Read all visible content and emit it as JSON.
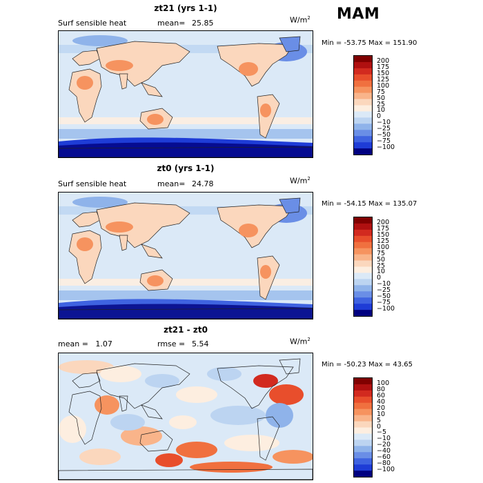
{
  "season": "MAM",
  "panels": [
    {
      "title": "zt21 (yrs 1-1)",
      "left_label": "Surf sensible heat",
      "stat_label": "mean=",
      "stat_value": "25.85",
      "units": "W/m",
      "units_sup": "2",
      "min_label": "Min =",
      "min_value": "-53.75",
      "max_label": "Max =",
      "max_value": "151.90",
      "colorbar_labels": [
        "200",
        "175",
        "150",
        "125",
        "100",
        "75",
        "50",
        "25",
        "10",
        "0",
        "-10",
        "-25",
        "-50",
        "-75",
        "-100"
      ]
    },
    {
      "title": "zt0 (yrs 1-1)",
      "left_label": "Surf sensible heat",
      "stat_label": "mean=",
      "stat_value": "24.78",
      "units": "W/m",
      "units_sup": "2",
      "min_label": "Min =",
      "min_value": "-54.15",
      "max_label": "Max =",
      "max_value": "135.07",
      "colorbar_labels": [
        "200",
        "175",
        "150",
        "125",
        "100",
        "75",
        "50",
        "25",
        "10",
        "0",
        "-10",
        "-25",
        "-50",
        "-75",
        "-100"
      ]
    },
    {
      "title": "zt21 - zt0",
      "left_label": "mean =   1.07",
      "stat_label": "rmse =",
      "stat_value": "5.54",
      "units": "W/m",
      "units_sup": "2",
      "min_label": "Min =",
      "min_value": "-50.23",
      "max_label": "Max =",
      "max_value": "43.65",
      "colorbar_labels": [
        "100",
        "80",
        "60",
        "40",
        "20",
        "10",
        "5",
        "0",
        "-5",
        "-10",
        "-20",
        "-40",
        "-60",
        "-80",
        "-100"
      ]
    }
  ],
  "colors": {
    "scale": [
      "#800000",
      "#b01010",
      "#d22a1f",
      "#e84e2c",
      "#f0703f",
      "#f6935f",
      "#f9b48a",
      "#fbd7bd",
      "#fdeee0",
      "#dbe9f7",
      "#bcd4f1",
      "#8fb3ea",
      "#6a8ee6",
      "#3f63e0",
      "#1e3cd6",
      "#000080"
    ],
    "ocean": "#dbe9f7",
    "coast": "#222222"
  }
}
